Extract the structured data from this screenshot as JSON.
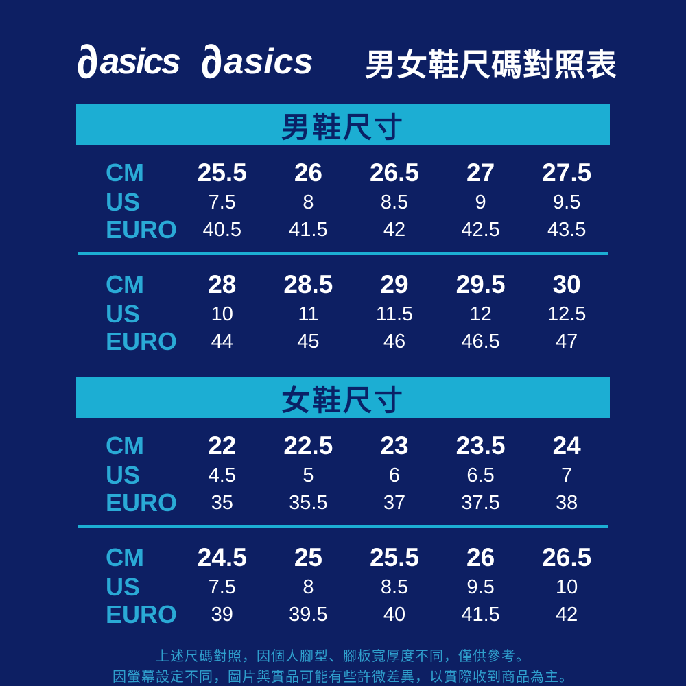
{
  "colors": {
    "background_navy": "#0d1f63",
    "banner_cyan": "#1caed3",
    "label_cyan": "#2aaad6",
    "footer_cyan": "#2f9fcd",
    "banner_text_navy": "#0a2166",
    "value_white": "#ffffff"
  },
  "header": {
    "logo_mark": "∂",
    "logo_text": "asics",
    "title": "男女鞋尺碼對照表"
  },
  "chart_data": [
    {
      "type": "table",
      "title": "男鞋尺寸",
      "row_labels": [
        "CM",
        "US",
        "EURO"
      ],
      "groups": [
        {
          "rows": [
            {
              "label": "CM",
              "values": [
                25.5,
                26,
                26.5,
                27,
                27.5
              ]
            },
            {
              "label": "US",
              "values": [
                7.5,
                8,
                8.5,
                9,
                9.5
              ]
            },
            {
              "label": "EURO",
              "values": [
                40.5,
                41.5,
                42,
                42.5,
                43.5
              ]
            }
          ]
        },
        {
          "rows": [
            {
              "label": "CM",
              "values": [
                28,
                28.5,
                29,
                29.5,
                30
              ]
            },
            {
              "label": "US",
              "values": [
                10,
                11,
                11.5,
                12,
                12.5
              ]
            },
            {
              "label": "EURO",
              "values": [
                44,
                45,
                46,
                46.5,
                47
              ]
            }
          ]
        }
      ]
    },
    {
      "type": "table",
      "title": "女鞋尺寸",
      "row_labels": [
        "CM",
        "US",
        "EURO"
      ],
      "groups": [
        {
          "rows": [
            {
              "label": "CM",
              "values": [
                22,
                22.5,
                23,
                23.5,
                24
              ]
            },
            {
              "label": "US",
              "values": [
                4.5,
                5,
                6,
                6.5,
                7
              ]
            },
            {
              "label": "EURO",
              "values": [
                35,
                35.5,
                37,
                37.5,
                38
              ]
            }
          ]
        },
        {
          "rows": [
            {
              "label": "CM",
              "values": [
                24.5,
                25,
                25.5,
                26,
                26.5
              ]
            },
            {
              "label": "US",
              "values": [
                7.5,
                8,
                8.5,
                9.5,
                10
              ]
            },
            {
              "label": "EURO",
              "values": [
                39,
                39.5,
                40,
                41.5,
                42
              ]
            }
          ]
        }
      ]
    }
  ],
  "footer": {
    "lines": [
      "上述尺碼對照，因個人腳型、腳板寬厚度不同，僅供參考。",
      "因螢幕設定不同，圖片與實品可能有些許微差異，以實際收到商品為主。"
    ]
  }
}
